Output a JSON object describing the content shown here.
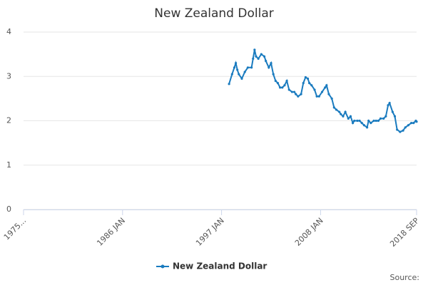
{
  "chart_data": {
    "type": "line",
    "title": "New Zealand Dollar",
    "source": "Source:",
    "x": [
      "1997-11",
      "1998-03",
      "1998-06",
      "1998-08",
      "1998-10",
      "1998-12",
      "1999-04",
      "1999-08",
      "1999-12",
      "2000-05",
      "2000-07",
      "2000-09",
      "2000-11",
      "2001-02",
      "2001-06",
      "2001-10",
      "2001-12",
      "2002-04",
      "2002-07",
      "2002-10",
      "2003-01",
      "2003-04",
      "2003-07",
      "2003-10",
      "2004-01",
      "2004-04",
      "2004-07",
      "2004-11",
      "2005-02",
      "2005-04",
      "2005-07",
      "2005-11",
      "2006-02",
      "2006-05",
      "2006-08",
      "2006-10",
      "2007-01",
      "2007-05",
      "2007-08",
      "2007-11",
      "2008-03",
      "2008-07",
      "2008-09",
      "2008-12",
      "2009-04",
      "2009-07",
      "2009-10",
      "2010-02",
      "2010-04",
      "2010-07",
      "2010-10",
      "2011-02",
      "2011-05",
      "2011-08",
      "2011-10",
      "2012-02",
      "2012-05",
      "2012-08",
      "2012-11",
      "2013-03",
      "2013-05",
      "2013-08",
      "2013-12",
      "2014-03",
      "2014-06",
      "2014-09",
      "2015-01",
      "2015-04",
      "2015-07",
      "2015-09",
      "2016-01",
      "2016-04",
      "2016-07",
      "2016-11",
      "2017-03",
      "2017-06",
      "2017-10",
      "2018-02",
      "2018-05",
      "2018-08",
      "2018-09"
    ],
    "series": [
      {
        "name": "New Zealand Dollar",
        "color": "#1a7bbf",
        "values": [
          2.83,
          3.05,
          3.2,
          3.3,
          3.15,
          3.05,
          2.95,
          3.1,
          3.2,
          3.2,
          3.4,
          3.6,
          3.45,
          3.4,
          3.5,
          3.45,
          3.35,
          3.2,
          3.3,
          3.05,
          2.9,
          2.85,
          2.75,
          2.75,
          2.8,
          2.9,
          2.7,
          2.65,
          2.65,
          2.6,
          2.55,
          2.6,
          2.85,
          2.98,
          2.95,
          2.85,
          2.8,
          2.7,
          2.55,
          2.55,
          2.65,
          2.75,
          2.8,
          2.6,
          2.5,
          2.3,
          2.25,
          2.2,
          2.15,
          2.1,
          2.2,
          2.05,
          2.1,
          1.95,
          2.0,
          2.0,
          2.0,
          1.95,
          1.9,
          1.85,
          2.0,
          1.95,
          2.0,
          2.0,
          2.0,
          2.05,
          2.05,
          2.1,
          2.35,
          2.4,
          2.2,
          2.1,
          1.8,
          1.75,
          1.78,
          1.85,
          1.9,
          1.95,
          1.95,
          2.0,
          1.98
        ]
      }
    ],
    "xlim": [
      "1975-01",
      "2018-09"
    ],
    "xticks": [
      {
        "value": "1975-01",
        "label": "1975..."
      },
      {
        "value": "1986-01",
        "label": "1986 JAN"
      },
      {
        "value": "1997-01",
        "label": "1997 JAN"
      },
      {
        "value": "2008-01",
        "label": "2008 JAN"
      },
      {
        "value": "2018-09",
        "label": "2018 SEP"
      }
    ],
    "ylim": [
      0,
      4
    ],
    "yticks": [
      0,
      1,
      2,
      3,
      4
    ],
    "grid": true,
    "legend": "bottom"
  }
}
